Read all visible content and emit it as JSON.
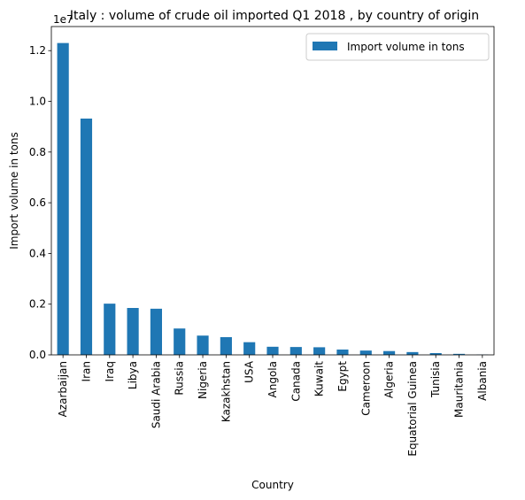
{
  "chart_data": {
    "type": "bar",
    "title": "Italy : volume of crude oil imported Q1 2018 , by country of origin",
    "xlabel": "Country",
    "ylabel": "Import volume in tons",
    "offset_text": "1e7",
    "scale": 10000000,
    "ylim": [
      0,
      12950000
    ],
    "yticks": [
      0.0,
      0.2,
      0.4,
      0.6,
      0.8,
      1.0,
      1.2
    ],
    "tick_format_decimals": 1,
    "grid": false,
    "legend_position": "top-right",
    "bar_color": "#1f77b4",
    "categories": [
      "Azarbaijan",
      "Iran",
      "Iraq",
      "Libya",
      "Saudi Arabia",
      "Russia",
      "Nigeria",
      "Kazakhstan",
      "USA",
      "Angola",
      "Canada",
      "Kuwait",
      "Egypt",
      "Cameroon",
      "Algeria",
      "Equatorial Guinea",
      "Tunisia",
      "Mauritania",
      "Albania"
    ],
    "series": [
      {
        "name": "Import volume in tons",
        "values": [
          12300000,
          9320000,
          2020000,
          1850000,
          1820000,
          1040000,
          760000,
          700000,
          500000,
          320000,
          310000,
          300000,
          210000,
          170000,
          150000,
          110000,
          70000,
          40000,
          10000
        ]
      }
    ]
  }
}
